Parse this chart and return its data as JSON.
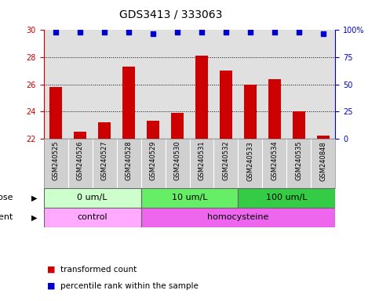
{
  "title": "GDS3413 / 333063",
  "samples": [
    "GSM240525",
    "GSM240526",
    "GSM240527",
    "GSM240528",
    "GSM240529",
    "GSM240530",
    "GSM240531",
    "GSM240532",
    "GSM240533",
    "GSM240534",
    "GSM240535",
    "GSM240848"
  ],
  "bar_values": [
    25.8,
    22.5,
    23.2,
    27.3,
    23.3,
    23.9,
    28.1,
    27.0,
    26.0,
    26.4,
    24.0,
    22.2
  ],
  "percentile_values": [
    98,
    98,
    98,
    98,
    97,
    98,
    98,
    98,
    98,
    98,
    98,
    97
  ],
  "bar_color": "#cc0000",
  "dot_color": "#0000cc",
  "ylim_left": [
    22,
    30
  ],
  "ylim_right": [
    0,
    100
  ],
  "yticks_left": [
    22,
    24,
    26,
    28,
    30
  ],
  "yticks_right": [
    0,
    25,
    50,
    75,
    100
  ],
  "dose_groups": [
    {
      "label": "0 um/L",
      "start": 0,
      "end": 4,
      "color": "#ccffcc"
    },
    {
      "label": "10 um/L",
      "start": 4,
      "end": 8,
      "color": "#66ee66"
    },
    {
      "label": "100 um/L",
      "start": 8,
      "end": 12,
      "color": "#33cc44"
    }
  ],
  "agent_groups": [
    {
      "label": "control",
      "start": 0,
      "end": 4,
      "color": "#ffaaff"
    },
    {
      "label": "homocysteine",
      "start": 4,
      "end": 12,
      "color": "#ee66ee"
    }
  ],
  "legend_bar_label": "transformed count",
  "legend_dot_label": "percentile rank within the sample",
  "background_color": "#ffffff",
  "plot_bg_color": "#e0e0e0",
  "sample_bg_color": "#d0d0d0",
  "grid_color": "#000000",
  "title_fontsize": 10,
  "tick_fontsize": 7,
  "sample_fontsize": 6,
  "annot_fontsize": 8,
  "axis_color_left": "#cc0000",
  "axis_color_right": "#0000cc"
}
